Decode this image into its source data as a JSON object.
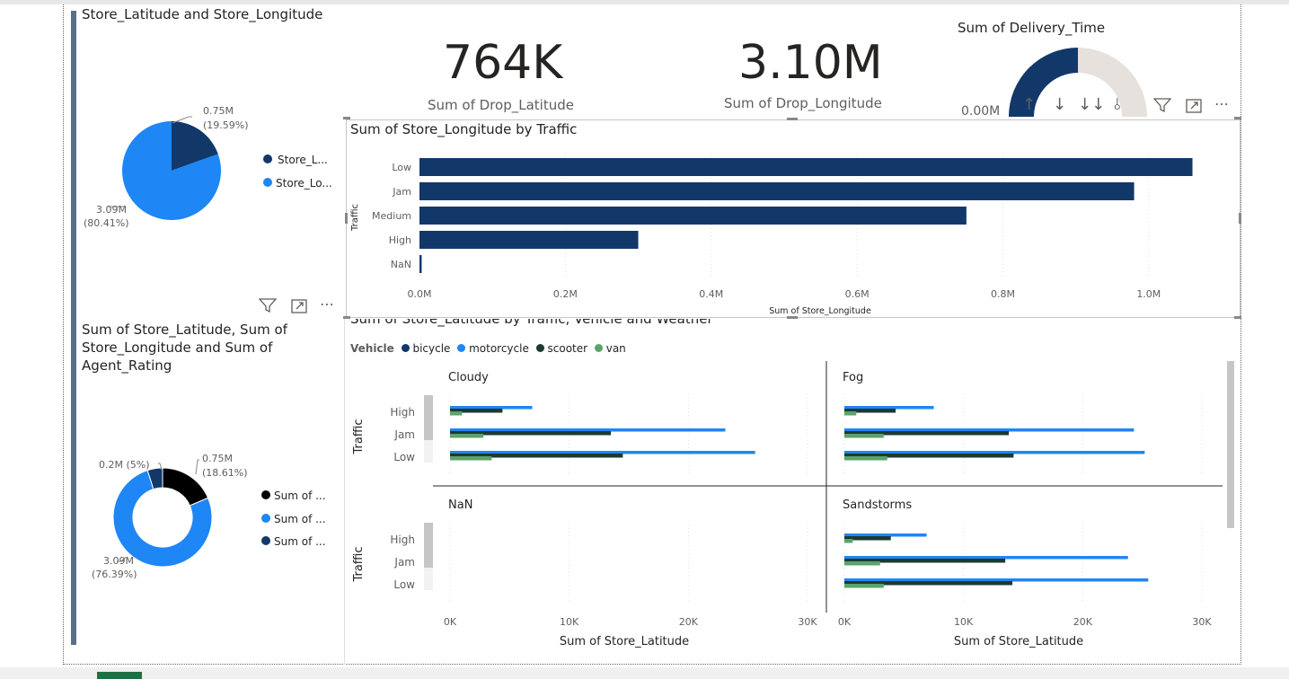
{
  "pie": {
    "title": "Store_Latitude and Store_Longitude",
    "slice1_value": "0.75M",
    "slice1_pct": "(19.59%)",
    "slice2_value": "3.09M",
    "slice2_pct": "(80.41%)",
    "legend": [
      "Store_L...",
      "Store_Lo..."
    ],
    "colors": [
      "#12386a",
      "#1e86f5"
    ]
  },
  "kpi1": {
    "value": "764K",
    "label": "Sum of Drop_Latitude"
  },
  "kpi2": {
    "value": "3.10M",
    "label": "Sum of Drop_Longitude"
  },
  "gauge": {
    "title": "Sum of Delivery_Time",
    "min_label": "0.00M"
  },
  "bar": {
    "title": "Sum of Store_Longitude by Traffic",
    "ylabel": "Traffic",
    "xlabel": "Sum of Store_Longitude",
    "ticks": [
      "0.0M",
      "0.2M",
      "0.4M",
      "0.6M",
      "0.8M",
      "1.0M"
    ]
  },
  "donut": {
    "title": "Sum of Store_Latitude, Sum of Store_Longitude and Sum of Agent_Rating",
    "label_a": "0.2M (5%)",
    "label_b_value": "0.75M",
    "label_b_pct": "(18.61%)",
    "label_c_value": "3.09M",
    "label_c_pct": "(76.39%)",
    "legend": [
      "Sum of ...",
      "Sum of ...",
      "Sum of ..."
    ]
  },
  "small_multiples": {
    "title": "Sum of Store_Latitude by Traffic, Vehicle and Weather",
    "legend_title": "Vehicle",
    "legend": [
      "bicycle",
      "motorcycle",
      "scooter",
      "van"
    ],
    "colors": [
      "#12386a",
      "#1e86f5",
      "#1b3a32",
      "#5aa36a"
    ],
    "ylabel": "Traffic",
    "xlabel": "Sum of Store_Latitude",
    "ticks": [
      "0K",
      "10K",
      "20K",
      "30K"
    ],
    "panels": [
      "Cloudy",
      "Fog",
      "NaN",
      "Sandstorms"
    ]
  },
  "chart_data": [
    {
      "type": "pie",
      "title": "Store_Latitude and Store_Longitude",
      "categories": [
        "Store_Latitude",
        "Store_Longitude"
      ],
      "values": [
        0.75,
        3.09
      ],
      "percent": [
        19.59,
        80.41
      ],
      "units": "M"
    },
    {
      "type": "bar",
      "title": "Sum of Store_Longitude by Traffic",
      "categories": [
        "Low",
        "Jam",
        "Medium",
        "High",
        "NaN"
      ],
      "values": [
        1.06,
        0.98,
        0.75,
        0.3,
        0.003
      ],
      "xlabel": "Sum of Store_Longitude",
      "ylabel": "Traffic",
      "xlim": [
        0,
        1.1
      ],
      "units": "M",
      "color": "#12386a"
    },
    {
      "type": "pie",
      "title": "Sum of Store_Latitude, Sum of Store_Longitude and Sum of Agent_Rating",
      "categories": [
        "Sum of ...",
        "Sum of ...",
        "Sum of ..."
      ],
      "values": [
        0.75,
        3.09,
        0.2
      ],
      "percent": [
        18.61,
        76.39,
        5
      ],
      "units": "M"
    },
    {
      "type": "bar",
      "title": "Sum of Store_Latitude by Traffic, Vehicle and Weather",
      "xlabel": "Sum of Store_Latitude",
      "ylabel": "Traffic",
      "xlim": [
        0,
        30000
      ],
      "categories": [
        "High",
        "Jam",
        "Low"
      ],
      "panels": [
        {
          "name": "Cloudy",
          "series": [
            {
              "name": "bicycle",
              "values": [
                0,
                0,
                0
              ]
            },
            {
              "name": "motorcycle",
              "values": [
                6900,
                23100,
                25600
              ]
            },
            {
              "name": "scooter",
              "values": [
                4400,
                13500,
                14500
              ]
            },
            {
              "name": "van",
              "values": [
                1000,
                2800,
                3500
              ]
            }
          ]
        },
        {
          "name": "Fog",
          "series": [
            {
              "name": "bicycle",
              "values": [
                0,
                0,
                0
              ]
            },
            {
              "name": "motorcycle",
              "values": [
                7500,
                24300,
                25200
              ]
            },
            {
              "name": "scooter",
              "values": [
                4300,
                13800,
                14200
              ]
            },
            {
              "name": "van",
              "values": [
                1000,
                3300,
                3600
              ]
            }
          ]
        },
        {
          "name": "NaN",
          "series": [
            {
              "name": "bicycle",
              "values": [
                0,
                0,
                0
              ]
            },
            {
              "name": "motorcycle",
              "values": [
                0,
                0,
                0
              ]
            },
            {
              "name": "scooter",
              "values": [
                0,
                0,
                0
              ]
            },
            {
              "name": "van",
              "values": [
                0,
                0,
                0
              ]
            }
          ]
        },
        {
          "name": "Sandstorms",
          "series": [
            {
              "name": "bicycle",
              "values": [
                0,
                0,
                0
              ]
            },
            {
              "name": "motorcycle",
              "values": [
                6900,
                23800,
                25500
              ]
            },
            {
              "name": "scooter",
              "values": [
                3900,
                13500,
                14100
              ]
            },
            {
              "name": "van",
              "values": [
                700,
                3000,
                3300
              ]
            }
          ]
        }
      ]
    }
  ]
}
